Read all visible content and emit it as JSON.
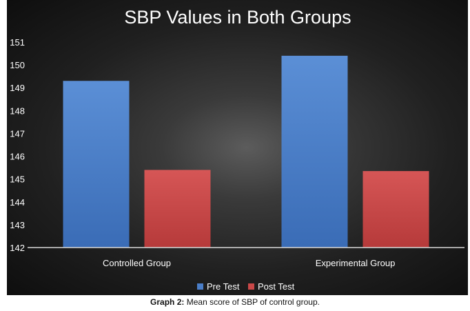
{
  "chart_data": {
    "type": "bar",
    "title": "SBP Values in Both Groups",
    "categories": [
      "Controlled Group",
      "Experimental Group"
    ],
    "series": [
      {
        "name": "Pre Test",
        "values": [
          149.3,
          150.4
        ],
        "color": "#4a7ec8"
      },
      {
        "name": "Post Test",
        "values": [
          145.4,
          145.35
        ],
        "color": "#c94848"
      }
    ],
    "ylim": [
      142,
      151
    ],
    "yticks": [
      "142",
      "143",
      "144",
      "145",
      "146",
      "147",
      "148",
      "149",
      "150",
      "151"
    ],
    "legend": "bottom",
    "grid": false
  },
  "caption": {
    "label": "Graph 2:",
    "text": "Mean score of SBP of control group."
  }
}
